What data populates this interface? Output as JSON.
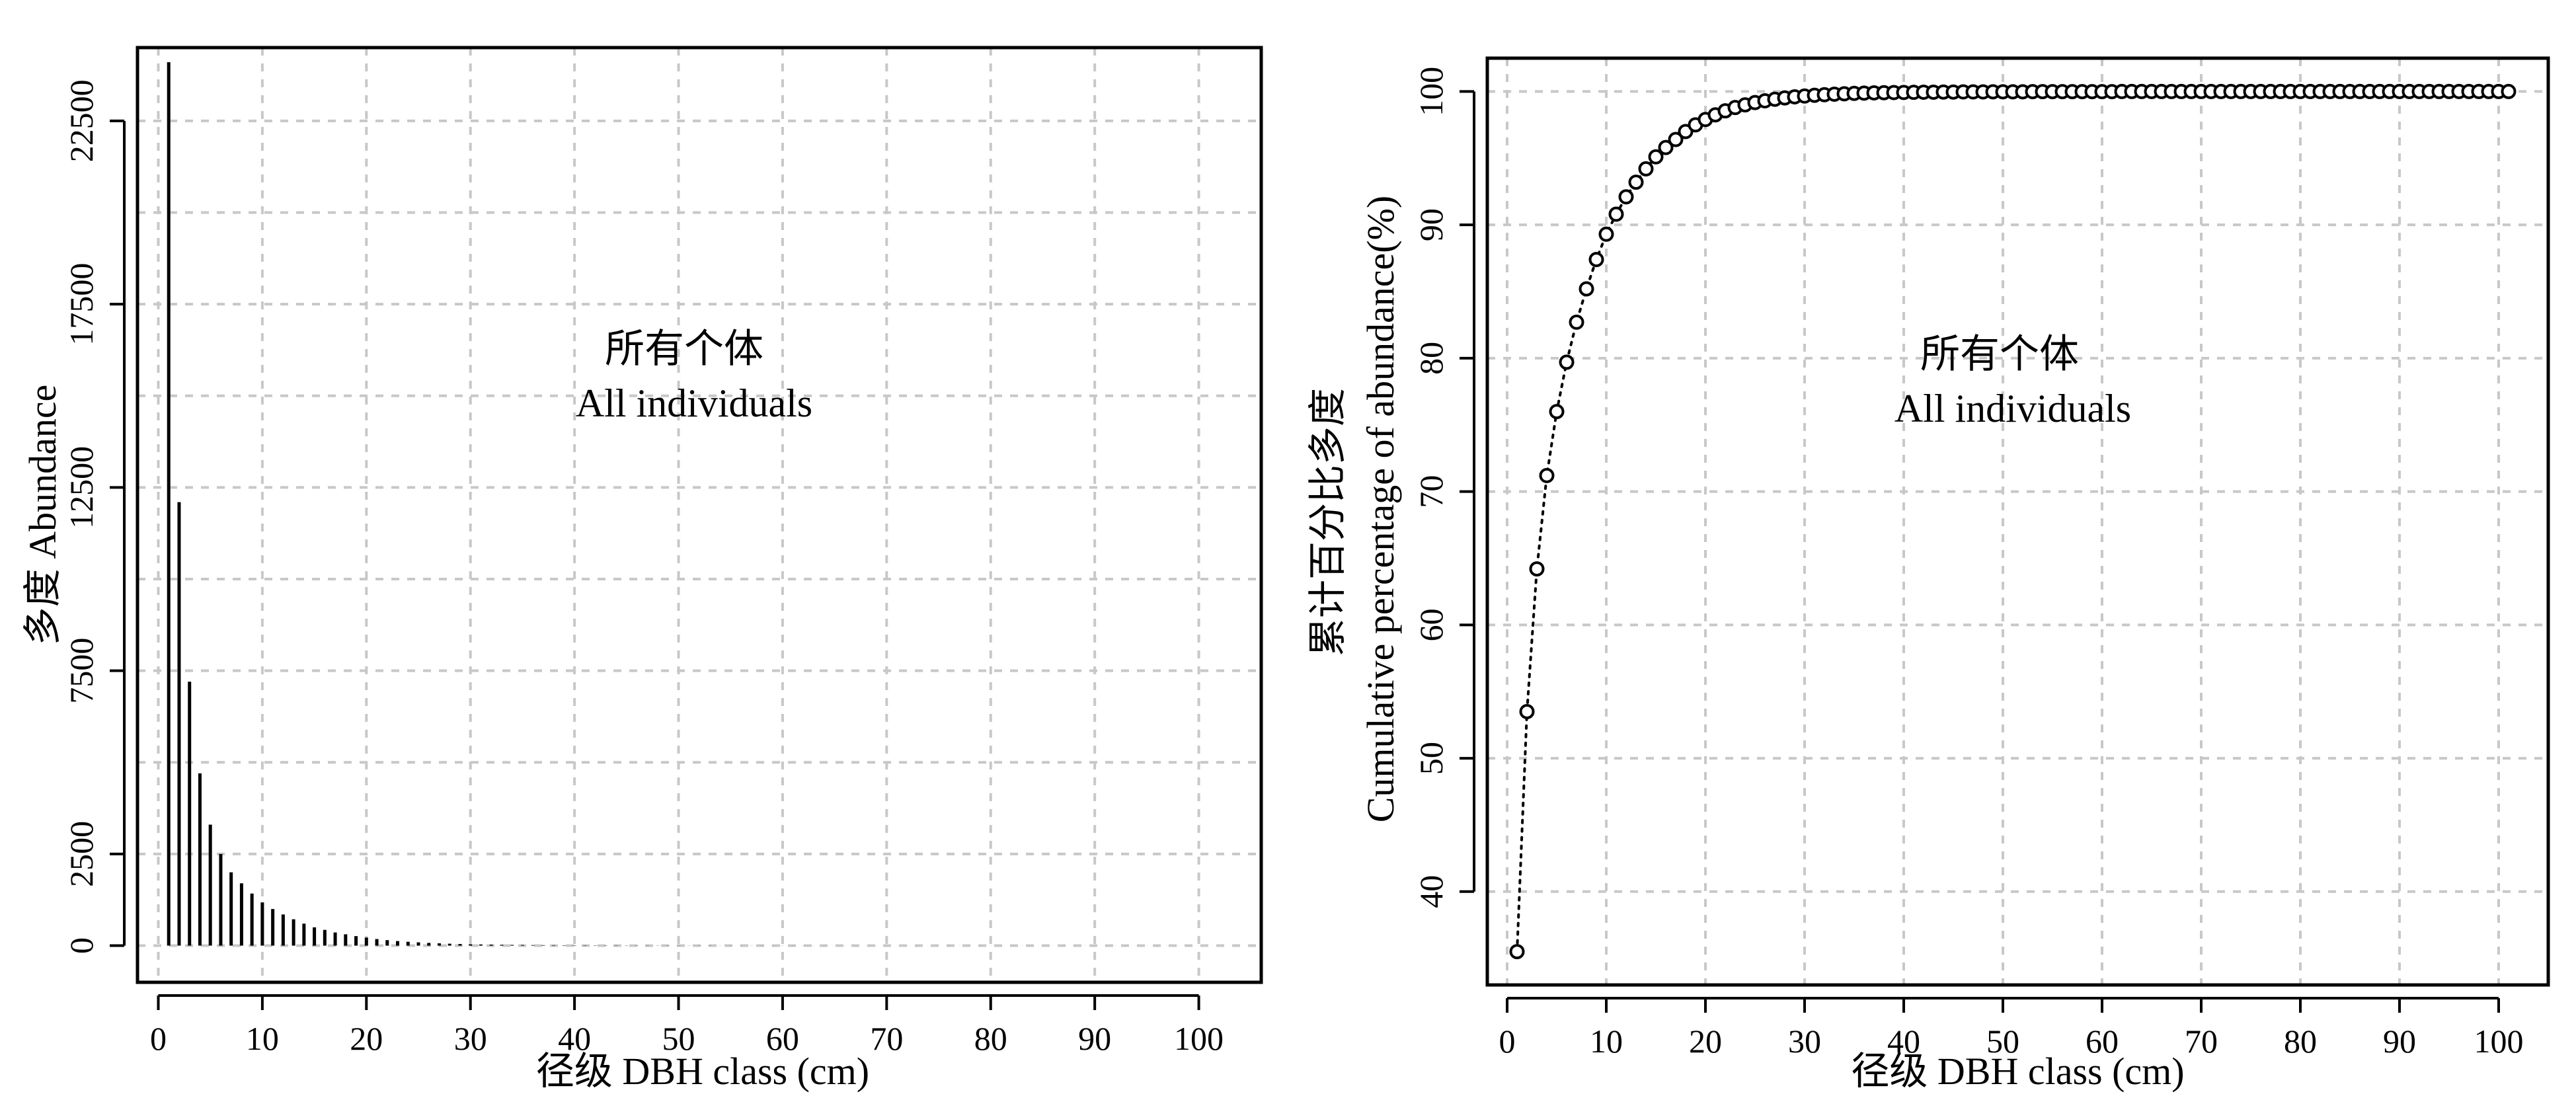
{
  "chart_data": [
    {
      "type": "bar",
      "annotation": [
        "所有个体",
        "All individuals"
      ],
      "xlabel": "径级 DBH class (cm)",
      "ylabel": "多度 Abundance",
      "xlim": [
        -2,
        106
      ],
      "ylim": [
        -1000,
        24500
      ],
      "xticks": [
        "0",
        "10",
        "20",
        "30",
        "40",
        "50",
        "60",
        "70",
        "80",
        "90",
        "100"
      ],
      "yticks": [
        "0",
        "2500",
        "7500",
        "12500",
        "17500",
        "22500"
      ],
      "ytick_values": [
        0,
        2500,
        7500,
        12500,
        17500,
        22500
      ],
      "grid": true,
      "x": [
        1,
        2,
        3,
        4,
        5,
        6,
        7,
        8,
        9,
        10,
        11,
        12,
        13,
        14,
        15,
        16,
        17,
        18,
        19,
        20,
        21,
        22,
        23,
        24,
        25,
        26,
        27,
        28,
        29,
        30,
        31,
        32,
        33,
        34,
        35,
        36,
        37,
        38,
        39,
        40,
        41,
        42,
        43,
        44,
        45,
        46,
        47,
        48,
        49,
        50,
        51,
        52,
        53,
        54,
        55,
        56,
        57,
        58,
        59,
        60,
        61,
        62,
        63,
        64,
        65,
        66,
        67,
        68,
        69,
        70,
        71,
        72,
        73,
        74,
        75,
        76,
        77,
        78,
        79,
        80,
        81,
        82,
        83,
        84,
        85,
        86,
        87,
        88,
        89,
        90,
        91,
        92,
        93,
        94,
        95,
        96,
        97,
        98,
        99,
        100
      ],
      "values": [
        24100,
        12100,
        7200,
        4700,
        3300,
        2500,
        2000,
        1700,
        1420,
        1180,
        1000,
        850,
        720,
        600,
        500,
        430,
        360,
        310,
        260,
        220,
        180,
        150,
        125,
        105,
        90,
        75,
        63,
        53,
        45,
        38,
        32,
        27,
        23,
        20,
        17,
        15,
        13,
        11,
        10,
        9,
        8,
        7,
        6,
        6,
        5,
        5,
        4,
        4,
        4,
        3,
        3,
        3,
        3,
        2,
        2,
        2,
        2,
        2,
        2,
        2,
        2,
        2,
        1,
        1,
        1,
        1,
        1,
        1,
        1,
        1,
        1,
        1,
        1,
        1,
        1,
        1,
        1,
        1,
        1,
        1,
        1,
        1,
        1,
        1,
        1,
        1,
        1,
        1,
        1,
        1,
        1,
        1,
        1,
        1,
        1,
        1,
        1,
        1,
        1,
        1
      ]
    },
    {
      "type": "line",
      "annotation": [
        "所有个体",
        "All individuals"
      ],
      "xlabel": "径级 DBH class (cm)",
      "ylabel": [
        "累计百分比多度",
        "Cumulative percentage of abundance(%)"
      ],
      "xlim": [
        -2,
        105
      ],
      "ylim": [
        33,
        102.5
      ],
      "xticks": [
        "0",
        "10",
        "20",
        "30",
        "40",
        "50",
        "60",
        "70",
        "80",
        "90",
        "100"
      ],
      "yticks": [
        "40",
        "50",
        "60",
        "70",
        "80",
        "90",
        "100"
      ],
      "grid": true,
      "x": [
        1,
        2,
        3,
        4,
        5,
        6,
        7,
        8,
        9,
        10,
        11,
        12,
        13,
        14,
        15,
        16,
        17,
        18,
        19,
        20,
        21,
        22,
        23,
        24,
        25,
        26,
        27,
        28,
        29,
        30,
        31,
        32,
        33,
        34,
        35,
        36,
        37,
        38,
        39,
        40,
        41,
        42,
        43,
        44,
        45,
        46,
        47,
        48,
        49,
        50,
        51,
        52,
        53,
        54,
        55,
        56,
        57,
        58,
        59,
        60,
        61,
        62,
        63,
        64,
        65,
        66,
        67,
        68,
        69,
        70,
        71,
        72,
        73,
        74,
        75,
        76,
        77,
        78,
        79,
        80,
        81,
        82,
        83,
        84,
        85,
        86,
        87,
        88,
        89,
        90,
        91,
        92,
        93,
        94,
        95,
        96,
        97,
        98,
        99,
        100,
        101
      ],
      "y": [
        35.5,
        53.5,
        64.2,
        71.2,
        76.0,
        79.7,
        82.7,
        85.2,
        87.4,
        89.3,
        90.8,
        92.1,
        93.2,
        94.2,
        95.1,
        95.8,
        96.4,
        97.0,
        97.5,
        97.9,
        98.25,
        98.55,
        98.8,
        99.0,
        99.17,
        99.3,
        99.42,
        99.52,
        99.6,
        99.66,
        99.72,
        99.76,
        99.8,
        99.83,
        99.86,
        99.88,
        99.9,
        99.91,
        99.92,
        99.93,
        99.94,
        99.95,
        99.95,
        99.96,
        99.96,
        99.97,
        99.97,
        99.97,
        99.98,
        99.98,
        99.98,
        99.98,
        99.99,
        99.99,
        99.99,
        99.99,
        99.99,
        99.99,
        99.99,
        99.99,
        99.99,
        100,
        100,
        100,
        100,
        100,
        100,
        100,
        100,
        100,
        100,
        100,
        100,
        100,
        100,
        100,
        100,
        100,
        100,
        100,
        100,
        100,
        100,
        100,
        100,
        100,
        100,
        100,
        100,
        100,
        100,
        100,
        100,
        100,
        100,
        100,
        100,
        100,
        100,
        100,
        100
      ]
    }
  ]
}
